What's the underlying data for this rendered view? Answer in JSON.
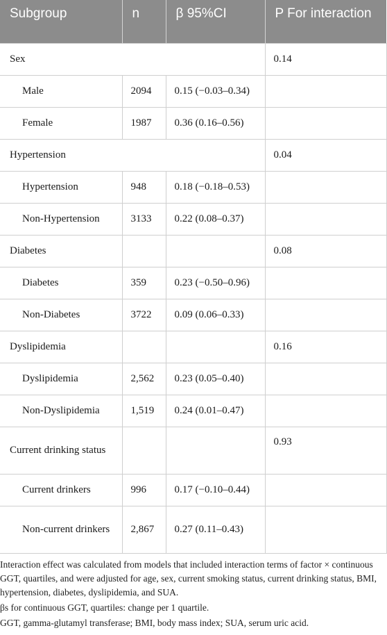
{
  "table": {
    "headers": {
      "subgroup": "Subgroup",
      "n": "n",
      "beta": "β 95%CI",
      "p": "P For interaction"
    },
    "groups": [
      {
        "label": "Sex",
        "p": "0.14",
        "rows": [
          {
            "label": "Male",
            "n": "2094",
            "beta": "0.15 (−0.03–0.34)"
          },
          {
            "label": "Female",
            "n": "1987",
            "beta": "0.36 (0.16–0.56)"
          }
        ]
      },
      {
        "label": "Hypertension",
        "p": "0.04",
        "rows": [
          {
            "label": "Hypertension",
            "n": "948",
            "beta": "0.18 (−0.18–0.53)"
          },
          {
            "label": "Non-Hypertension",
            "n": "3133",
            "beta": "0.22 (0.08–0.37)"
          }
        ]
      },
      {
        "label": "Diabetes",
        "p": "0.08",
        "rows": [
          {
            "label": "Diabetes",
            "n": "359",
            "beta": "0.23 (−0.50–0.96)"
          },
          {
            "label": "Non-Diabetes",
            "n": "3722",
            "beta": "0.09 (0.06–0.33)"
          }
        ]
      },
      {
        "label": "Dyslipidemia",
        "p": "0.16",
        "rows": [
          {
            "label": "Dyslipidemia",
            "n": "2,562",
            "beta": "0.23 (0.05–0.40)"
          },
          {
            "label": "Non-Dyslipidemia",
            "n": "1,519",
            "beta": "0.24 (0.01–0.47)"
          }
        ]
      },
      {
        "label": "Current drinking status",
        "p": "0.93",
        "rows": [
          {
            "label": "Current drinkers",
            "n": "996",
            "beta": "0.17 (−0.10–0.44)"
          },
          {
            "label": "Non-current drinkers",
            "n": "2,867",
            "beta": "0.27 (0.11–0.43)"
          }
        ]
      }
    ]
  },
  "notes": [
    "Interaction effect was calculated from models that included interaction terms of factor × continuous GGT, quartiles, and were adjusted for age, sex, current smoking status, current drinking status, BMI, hypertension, diabetes, dyslipidemia, and SUA.",
    "βs for continuous GGT, quartiles: change per 1 quartile.",
    "GGT, gamma-glutamyl transferase; BMI, body mass index; SUA, serum uric acid."
  ]
}
